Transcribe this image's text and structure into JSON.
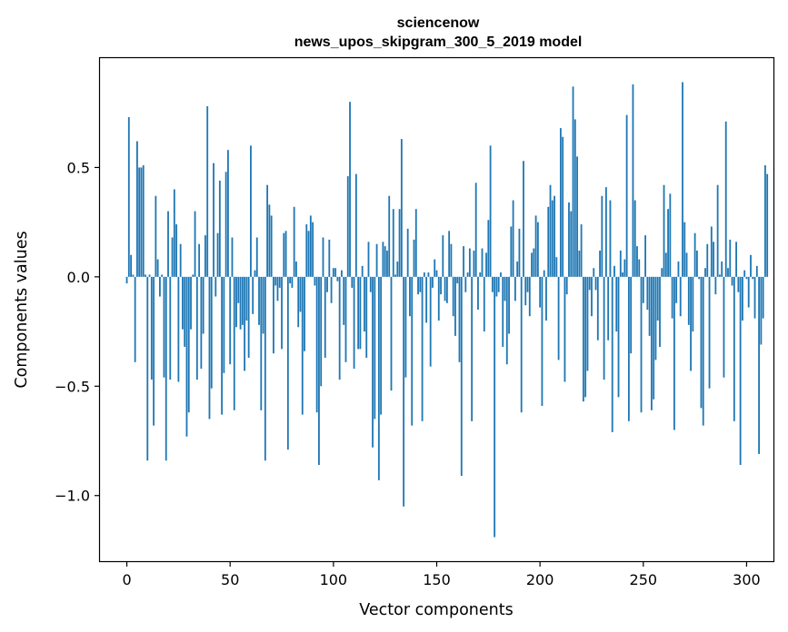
{
  "chart_data": {
    "type": "bar",
    "title_line1": "sciencenow",
    "title_line2": "news_upos_skipgram_300_5_2019 model",
    "xlabel": "Vector components",
    "ylabel": "Components values",
    "xlim": [
      -13,
      313
    ],
    "ylim": [
      -1.3,
      1.0
    ],
    "xticks": [
      0,
      50,
      100,
      150,
      200,
      250,
      300
    ],
    "yticks": [
      0.5,
      0.0,
      -0.5,
      -1.0
    ],
    "ytick_labels": [
      "0.5",
      "0.0",
      "−0.5",
      "−1.0"
    ],
    "bar_color": "#1f77b4",
    "grid": false,
    "values": [
      -0.03,
      0.73,
      0.1,
      0.01,
      -0.39,
      0.62,
      0.5,
      0.5,
      0.51,
      0.01,
      -0.84,
      0.01,
      -0.47,
      -0.68,
      0.37,
      0.08,
      -0.09,
      0.01,
      -0.46,
      -0.84,
      0.3,
      -0.47,
      0.18,
      0.4,
      0.24,
      -0.48,
      0.15,
      -0.24,
      -0.32,
      -0.73,
      -0.62,
      -0.24,
      0.01,
      0.3,
      -0.47,
      0.15,
      -0.42,
      -0.26,
      0.19,
      0.78,
      -0.65,
      -0.51,
      0.52,
      -0.09,
      0.2,
      0.44,
      -0.63,
      -0.44,
      0.48,
      0.58,
      -0.4,
      0.18,
      -0.61,
      -0.23,
      -0.12,
      -0.24,
      -0.22,
      -0.43,
      -0.2,
      -0.37,
      0.6,
      -0.17,
      0.03,
      0.18,
      -0.22,
      -0.61,
      -0.26,
      -0.84,
      0.42,
      0.33,
      0.28,
      -0.35,
      -0.04,
      -0.11,
      -0.05,
      -0.33,
      0.2,
      0.21,
      -0.79,
      -0.03,
      -0.05,
      0.32,
      0.07,
      -0.23,
      -0.16,
      -0.63,
      -0.34,
      0.24,
      0.21,
      0.28,
      0.25,
      -0.04,
      -0.62,
      -0.86,
      -0.5,
      0.18,
      -0.37,
      -0.07,
      0.17,
      -0.12,
      0.04,
      0.04,
      -0.02,
      -0.47,
      0.03,
      -0.22,
      -0.39,
      0.46,
      0.8,
      -0.05,
      -0.42,
      0.47,
      -0.33,
      -0.33,
      0.05,
      -0.25,
      -0.37,
      0.16,
      -0.07,
      -0.78,
      -0.65,
      0.15,
      -0.93,
      -0.63,
      0.16,
      0.14,
      0.12,
      0.37,
      -0.52,
      0.31,
      0.01,
      0.07,
      0.31,
      0.63,
      -1.05,
      -0.46,
      0.22,
      -0.18,
      -0.68,
      0.17,
      0.31,
      -0.08,
      -0.07,
      -0.66,
      0.02,
      -0.21,
      0.02,
      -0.41,
      -0.05,
      0.08,
      0.03,
      -0.2,
      -0.08,
      0.19,
      -0.11,
      -0.12,
      0.21,
      0.15,
      -0.18,
      -0.27,
      -0.03,
      -0.39,
      -0.91,
      0.14,
      -0.07,
      0.02,
      0.13,
      -0.66,
      0.12,
      0.43,
      -0.15,
      0.02,
      0.13,
      -0.25,
      0.11,
      0.26,
      0.6,
      -0.07,
      -1.19,
      -0.09,
      -0.07,
      0.02,
      -0.32,
      -0.11,
      -0.4,
      -0.26,
      0.23,
      0.35,
      -0.11,
      0.07,
      0.22,
      -0.62,
      0.53,
      -0.13,
      -0.07,
      -0.18,
      0.11,
      0.13,
      0.28,
      0.25,
      -0.14,
      -0.59,
      0.03,
      -0.2,
      0.32,
      0.42,
      0.35,
      0.37,
      0.09,
      -0.38,
      0.68,
      0.64,
      -0.48,
      -0.08,
      0.34,
      0.3,
      0.87,
      0.72,
      0.55,
      0.12,
      0.24,
      -0.57,
      -0.55,
      -0.43,
      -0.06,
      -0.18,
      0.04,
      -0.06,
      -0.29,
      0.12,
      0.37,
      -0.47,
      0.41,
      -0.29,
      0.35,
      -0.71,
      0.05,
      -0.25,
      -0.55,
      0.12,
      0.02,
      0.08,
      0.74,
      -0.66,
      -0.35,
      0.88,
      0.35,
      0.14,
      0.08,
      -0.62,
      -0.12,
      0.19,
      -0.15,
      -0.27,
      -0.61,
      -0.56,
      -0.38,
      -0.2,
      -0.32,
      0.04,
      0.42,
      0.11,
      0.31,
      0.38,
      -0.19,
      -0.7,
      -0.12,
      0.07,
      -0.18,
      0.89,
      0.25,
      0.11,
      -0.22,
      -0.43,
      -0.25,
      0.2,
      0.12,
      -0.01,
      -0.6,
      -0.68,
      0.04,
      0.15,
      -0.51,
      0.23,
      0.16,
      -0.08,
      0.42,
      0.01,
      0.07,
      -0.46,
      0.71,
      0.04,
      0.17,
      -0.04,
      -0.66,
      0.16,
      -0.07,
      -0.86,
      -0.2,
      0.03,
      -0.01,
      -0.14,
      0.1,
      -0.01,
      -0.19,
      0.05,
      -0.81,
      -0.31,
      -0.19,
      0.51,
      0.47
    ]
  }
}
